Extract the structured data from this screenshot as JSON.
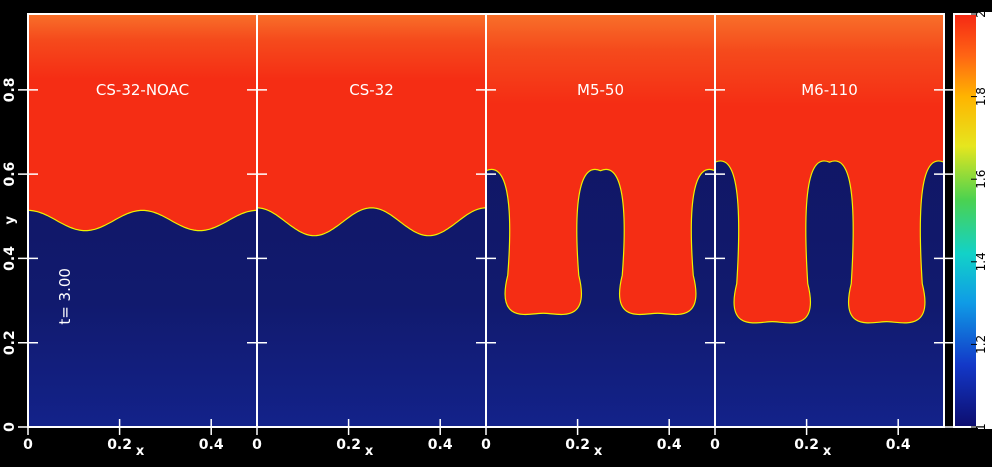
{
  "chart_data": {
    "type": "heatmap",
    "time_label": "t= 3.00",
    "xlabel": "x",
    "ylabel": "y",
    "xlim": [
      0,
      0.5
    ],
    "ylim": [
      0,
      0.98
    ],
    "x_ticks": [
      "0",
      "0.2",
      "0.4"
    ],
    "x_tick_values": [
      0,
      0.2,
      0.4
    ],
    "y_ticks": [
      "0",
      "0.2",
      "0.4",
      "0.6",
      "0.8"
    ],
    "y_tick_values": [
      0,
      0.2,
      0.4,
      0.6,
      0.8
    ],
    "colorbar": {
      "range": [
        1,
        2
      ],
      "ticks": [
        "1",
        "1.2",
        "1.4",
        "1.6",
        "1.8",
        "2"
      ],
      "tick_values": [
        1,
        1.2,
        1.4,
        1.6,
        1.8,
        2
      ]
    },
    "panels": [
      {
        "label": "CS-32-NOAC",
        "interface_mean_y": 0.49,
        "interface_amplitude": 0.024,
        "mushroom": false
      },
      {
        "label": "CS-32",
        "interface_mean_y": 0.487,
        "interface_amplitude": 0.033,
        "mushroom": false
      },
      {
        "label": "M5-50",
        "bubble_tip_y": 0.63,
        "spike_tip_y": 0.27,
        "mushroom": true
      },
      {
        "label": "M6-110",
        "bubble_tip_y": 0.65,
        "spike_tip_y": 0.25,
        "mushroom": true
      }
    ],
    "colors": {
      "heavy": "#f52d14",
      "light": "#10135e",
      "frame": "#ffffff"
    }
  }
}
